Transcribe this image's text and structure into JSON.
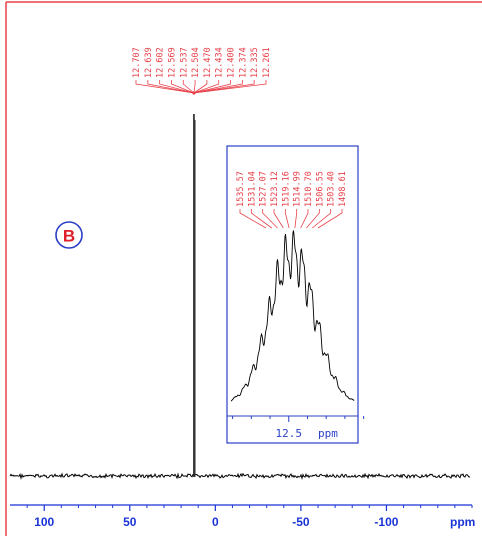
{
  "figure": {
    "panel_label": "B",
    "colors": {
      "frame": "#e8414a",
      "axis": "#1a33d6",
      "inset_frame": "#2a3fc6",
      "spectrum": "#000000",
      "peak_labels": "#e8414a",
      "badge_ring": "#2a3fc6",
      "badge_text": "#e01e2a"
    }
  },
  "chart_data": [
    {
      "type": "line",
      "title": "",
      "xlabel": "",
      "ylabel": "",
      "x_unit": "ppm",
      "xlim": [
        120,
        -150
      ],
      "x_reversed": true,
      "x_ticks": [
        100,
        50,
        0,
        -50,
        -100
      ],
      "x_tick_labels": [
        "100",
        "50",
        "0",
        "-50",
        "-100"
      ],
      "peak_position": 12.5,
      "peak_labels": [
        "12.707",
        "12.639",
        "12.602",
        "12.569",
        "12.537",
        "12.504",
        "12.470",
        "12.434",
        "12.400",
        "12.374",
        "12.335",
        "12.261"
      ],
      "grid": false,
      "legend": "none"
    },
    {
      "type": "line",
      "title": "",
      "x_unit": "ppm",
      "xlim": [
        12.83,
        12.13
      ],
      "x_reversed": true,
      "x_ticks": [
        12.5
      ],
      "x_tick_labels": [
        "12.5"
      ],
      "peak_labels_hz": [
        "1535.57",
        "1531.04",
        "1527.07",
        "1523.12",
        "1519.16",
        "1514.99",
        "1510.70",
        "1506.55",
        "1503.40",
        "1498.61"
      ],
      "grid": false,
      "legend": "none"
    }
  ]
}
